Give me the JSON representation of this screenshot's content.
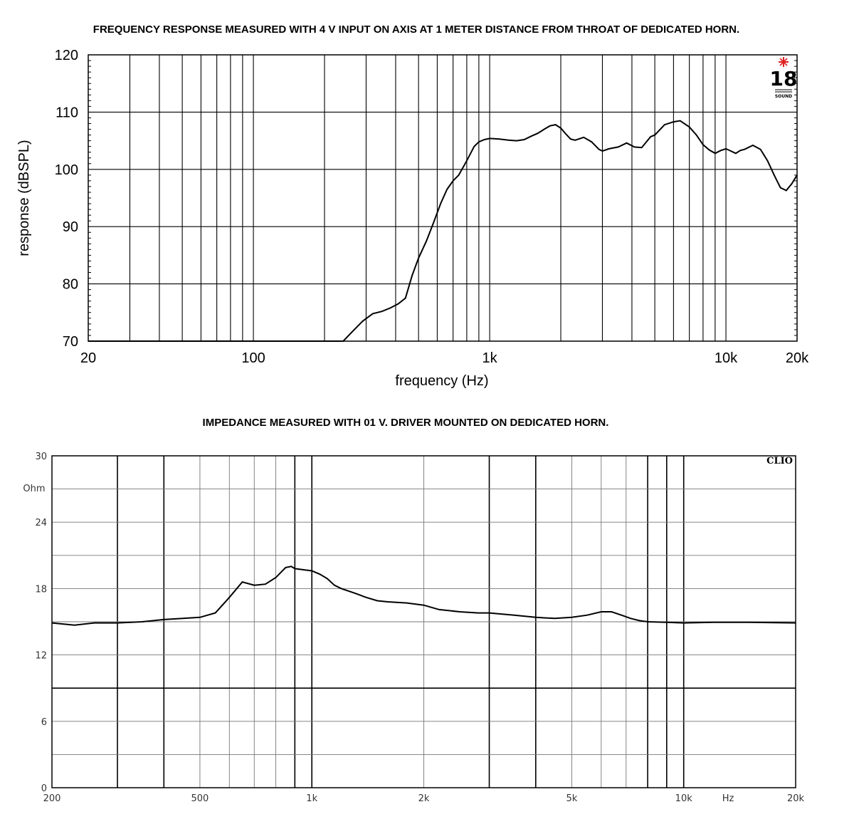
{
  "chart_data": [
    {
      "type": "line",
      "title": "FREQUENCY RESPONSE MEASURED WITH 4 V INPUT ON AXIS AT 1 METER DISTANCE FROM THROAT OF DEDICATED HORN.",
      "xlabel": "frequency (Hz)",
      "ylabel": "response (dBSPL)",
      "xscale": "log",
      "xlim": [
        20,
        20000
      ],
      "ylim": [
        70,
        120
      ],
      "xticks": [
        {
          "value": 20,
          "label": "20"
        },
        {
          "value": 100,
          "label": "100"
        },
        {
          "value": 1000,
          "label": "1k"
        },
        {
          "value": 10000,
          "label": "10k"
        },
        {
          "value": 20000,
          "label": "20k"
        }
      ],
      "yticks": [
        {
          "value": 70,
          "label": "70"
        },
        {
          "value": 80,
          "label": "80"
        },
        {
          "value": 90,
          "label": "90"
        },
        {
          "value": 100,
          "label": "100"
        },
        {
          "value": 110,
          "label": "110"
        },
        {
          "value": 120,
          "label": "120"
        }
      ],
      "logo": {
        "number": "18",
        "word": "SOUND",
        "accent": "#e02020"
      },
      "grid": true,
      "series": [
        {
          "color": "#000000",
          "x": [
            20,
            240,
            260,
            290,
            320,
            350,
            380,
            410,
            440,
            470,
            500,
            540,
            580,
            620,
            660,
            700,
            740,
            800,
            860,
            900,
            950,
            1000,
            1100,
            1200,
            1300,
            1400,
            1500,
            1600,
            1700,
            1800,
            1900,
            2000,
            2100,
            2200,
            2300,
            2500,
            2700,
            2900,
            3000,
            3200,
            3500,
            3800,
            4100,
            4400,
            4800,
            5000,
            5500,
            6000,
            6400,
            7000,
            7500,
            8000,
            8500,
            9000,
            9500,
            10000,
            10500,
            11000,
            11500,
            12000,
            13000,
            14000,
            15000,
            16000,
            17000,
            18000,
            19000,
            20000
          ],
          "y": [
            70,
            70,
            71.5,
            73.5,
            74.8,
            75.2,
            75.8,
            76.5,
            77.5,
            81.5,
            84.5,
            87.5,
            90.8,
            94,
            96.5,
            98,
            99,
            101.5,
            104,
            104.8,
            105.2,
            105.4,
            105.3,
            105.1,
            105,
            105.2,
            105.8,
            106.3,
            107,
            107.6,
            107.8,
            107.2,
            106.2,
            105.3,
            105.1,
            105.6,
            104.8,
            103.5,
            103.2,
            103.6,
            103.9,
            104.6,
            103.9,
            103.8,
            105.7,
            106,
            107.8,
            108.3,
            108.5,
            107.4,
            106,
            104.3,
            103.4,
            102.8,
            103.3,
            103.6,
            103.2,
            102.8,
            103.3,
            103.5,
            104.2,
            103.5,
            101.5,
            99,
            96.8,
            96.3,
            97.5,
            99
          ]
        }
      ]
    },
    {
      "type": "line",
      "title": "IMPEDANCE MEASURED WITH 01 V. DRIVER MOUNTED ON DEDICATED HORN.",
      "xscale": "log",
      "xlim": [
        200,
        20000
      ],
      "ylim": [
        0,
        30
      ],
      "unit_label": "Ohm",
      "x_unit_label": "Hz",
      "xticks": [
        {
          "value": 200,
          "label": "200"
        },
        {
          "value": 500,
          "label": "500"
        },
        {
          "value": 1000,
          "label": "1k"
        },
        {
          "value": 2000,
          "label": "2k"
        },
        {
          "value": 5000,
          "label": "5k"
        },
        {
          "value": 10000,
          "label": "10k"
        },
        {
          "value": 20000,
          "label": "20k"
        }
      ],
      "yticks": [
        {
          "value": 0,
          "label": "0"
        },
        {
          "value": 6,
          "label": "6"
        },
        {
          "value": 12,
          "label": "12"
        },
        {
          "value": 18,
          "label": "18"
        },
        {
          "value": 24,
          "label": "24"
        },
        {
          "value": 30,
          "label": "30"
        }
      ],
      "brand": "CLIO",
      "grid": true,
      "series": [
        {
          "color": "#000000",
          "x": [
            200,
            230,
            260,
            300,
            350,
            400,
            450,
            500,
            550,
            600,
            650,
            700,
            750,
            800,
            850,
            880,
            900,
            950,
            1000,
            1050,
            1100,
            1150,
            1200,
            1300,
            1400,
            1500,
            1600,
            1800,
            2000,
            2200,
            2500,
            2800,
            3000,
            3500,
            4000,
            4500,
            5000,
            5500,
            6000,
            6400,
            6800,
            7200,
            7600,
            8000,
            9000,
            10000,
            12000,
            15000,
            20000
          ],
          "y": [
            14.9,
            14.7,
            14.9,
            14.9,
            15,
            15.2,
            15.3,
            15.4,
            15.8,
            17.2,
            18.6,
            18.3,
            18.4,
            19,
            19.9,
            20,
            19.8,
            19.7,
            19.6,
            19.3,
            18.9,
            18.3,
            18,
            17.6,
            17.2,
            16.9,
            16.8,
            16.7,
            16.5,
            16.1,
            15.9,
            15.8,
            15.8,
            15.6,
            15.4,
            15.3,
            15.4,
            15.6,
            15.9,
            15.9,
            15.6,
            15.3,
            15.1,
            15,
            14.95,
            14.9,
            14.95,
            14.95,
            14.9
          ]
        }
      ]
    }
  ]
}
